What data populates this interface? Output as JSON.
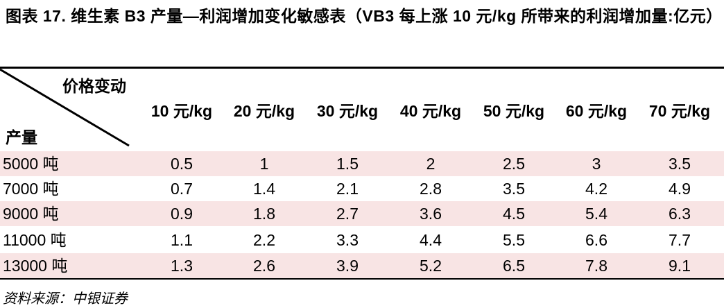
{
  "header": {
    "title": "图表 17. 维生素 B3 产量—利润增加变化敏感表（VB3 每上涨 10 元/kg 所带来的利润增加量:亿元）"
  },
  "table": {
    "corner_top": "价格变动",
    "corner_bottom": "产量",
    "columns": [
      "10 元/kg",
      "20 元/kg",
      "30 元/kg",
      "40 元/kg",
      "50 元/kg",
      "60 元/kg",
      "70 元/kg"
    ],
    "rows": [
      {
        "label": "5000 吨",
        "values": [
          0.5,
          1,
          1.5,
          2,
          2.5,
          3,
          3.5
        ]
      },
      {
        "label": "7000 吨",
        "values": [
          0.7,
          1.4,
          2.1,
          2.8,
          3.5,
          4.2,
          4.9
        ]
      },
      {
        "label": "9000 吨",
        "values": [
          0.9,
          1.8,
          2.7,
          3.6,
          4.5,
          5.4,
          6.3
        ]
      },
      {
        "label": "11000 吨",
        "values": [
          1.1,
          2.2,
          3.3,
          4.4,
          5.5,
          6.6,
          7.7
        ]
      },
      {
        "label": "13000 吨",
        "values": [
          1.3,
          2.6,
          3.9,
          5.2,
          6.5,
          7.8,
          9.1
        ]
      }
    ]
  },
  "footer": {
    "source": "资料来源：中银证券"
  }
}
